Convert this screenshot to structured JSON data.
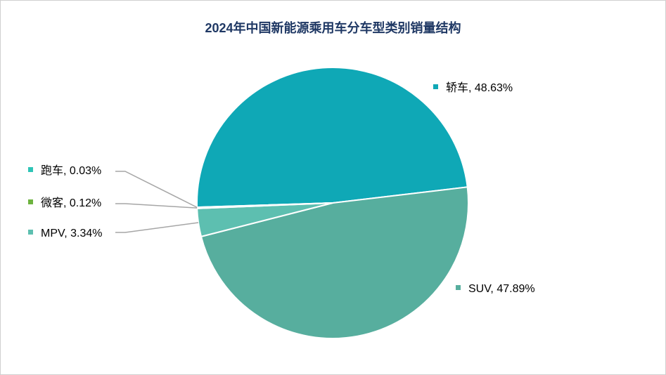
{
  "chart_data": {
    "type": "pie",
    "title": "2024年中国新能源乘用车分车型类别销量结构",
    "slices": [
      {
        "label": "轿车, 48.63%",
        "value": 48.63,
        "color": "#0fa8b6"
      },
      {
        "label": "SUV, 47.89%",
        "value": 47.89,
        "color": "#57ae9e"
      },
      {
        "label": "MPV, 3.34%",
        "value": 3.34,
        "color": "#5dbfb0"
      },
      {
        "label": "微客, 0.12%",
        "value": 0.12,
        "color": "#6db33f"
      },
      {
        "label": "跑车, 0.03%",
        "value": 0.03,
        "color": "#2ec4b6"
      }
    ],
    "legend": "labels-with-leader-lines"
  }
}
